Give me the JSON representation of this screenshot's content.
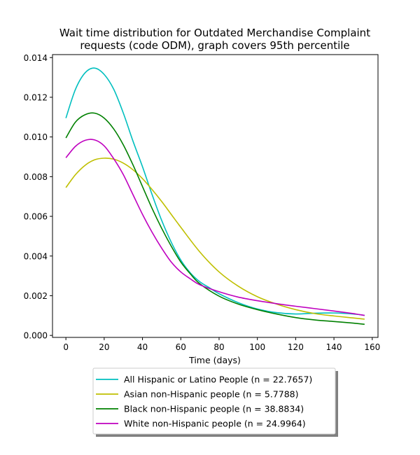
{
  "chart_data": {
    "type": "line",
    "title": "Wait time distribution  for Outdated Merchandise Complaint\nrequests (code ODM), graph covers 95th percentile",
    "xlabel": "Time (days)",
    "ylabel": "",
    "xlim": [
      -7,
      163
    ],
    "ylim": [
      -0.0001,
      0.01415
    ],
    "xticks": [
      0,
      20,
      40,
      60,
      80,
      100,
      120,
      140,
      160
    ],
    "yticks": [
      0.0,
      0.002,
      0.004,
      0.006,
      0.008,
      0.01,
      0.012,
      0.014
    ],
    "ytick_labels": [
      "0.000",
      "0.002",
      "0.004",
      "0.006",
      "0.008",
      "0.010",
      "0.012",
      "0.014"
    ],
    "grid": false,
    "legend_position": "below-plot",
    "series": [
      {
        "name": "All Hispanic or Latino People (n = 22.7657)",
        "color": "#00bfbf",
        "x": [
          0,
          5,
          10,
          15,
          20,
          25,
          30,
          35,
          40,
          45,
          50,
          55,
          60,
          65,
          70,
          75,
          80,
          90,
          100,
          110,
          120,
          130,
          140,
          150,
          156
        ],
        "y": [
          0.01095,
          0.0124,
          0.01323,
          0.01347,
          0.01315,
          0.0124,
          0.0112,
          0.0098,
          0.0085,
          0.0071,
          0.0058,
          0.0047,
          0.0038,
          0.00315,
          0.0027,
          0.0024,
          0.0021,
          0.00165,
          0.00133,
          0.00115,
          0.00108,
          0.00112,
          0.00113,
          0.00108,
          0.00101
        ]
      },
      {
        "name": "Asian non-Hispanic people (n = 5.7788)",
        "color": "#bfbf00",
        "x": [
          0,
          5,
          10,
          15,
          20,
          25,
          30,
          35,
          40,
          45,
          50,
          55,
          60,
          70,
          80,
          90,
          100,
          110,
          120,
          130,
          140,
          150,
          156
        ],
        "y": [
          0.00745,
          0.0081,
          0.00857,
          0.00885,
          0.00893,
          0.00888,
          0.00868,
          0.00835,
          0.0079,
          0.00735,
          0.00675,
          0.0061,
          0.00545,
          0.0042,
          0.0032,
          0.00248,
          0.00195,
          0.00158,
          0.0013,
          0.0011,
          0.00098,
          0.00088,
          0.00082
        ]
      },
      {
        "name": "Black non-Hispanic people (n = 38.8834)",
        "color": "#008000",
        "x": [
          0,
          5,
          10,
          15,
          20,
          25,
          30,
          35,
          40,
          45,
          50,
          55,
          60,
          65,
          70,
          80,
          90,
          100,
          110,
          120,
          130,
          140,
          150,
          156
        ],
        "y": [
          0.00995,
          0.01075,
          0.01112,
          0.0112,
          0.01095,
          0.0104,
          0.0096,
          0.0086,
          0.0075,
          0.0064,
          0.0054,
          0.0045,
          0.0037,
          0.0031,
          0.0026,
          0.00198,
          0.00158,
          0.0013,
          0.00108,
          0.0009,
          0.00078,
          0.0007,
          0.00062,
          0.00056
        ]
      },
      {
        "name": "White non-Hispanic people (n = 24.9964)",
        "color": "#bf00bf",
        "x": [
          0,
          5,
          10,
          15,
          20,
          25,
          30,
          35,
          40,
          45,
          50,
          55,
          60,
          65,
          70,
          80,
          90,
          100,
          110,
          120,
          130,
          140,
          150,
          156
        ],
        "y": [
          0.00895,
          0.00953,
          0.00983,
          0.00985,
          0.00955,
          0.0089,
          0.0081,
          0.0071,
          0.0061,
          0.0052,
          0.0044,
          0.0037,
          0.0032,
          0.00285,
          0.00255,
          0.0022,
          0.00193,
          0.00175,
          0.0016,
          0.00147,
          0.00135,
          0.00123,
          0.0011,
          0.00101
        ]
      }
    ]
  }
}
